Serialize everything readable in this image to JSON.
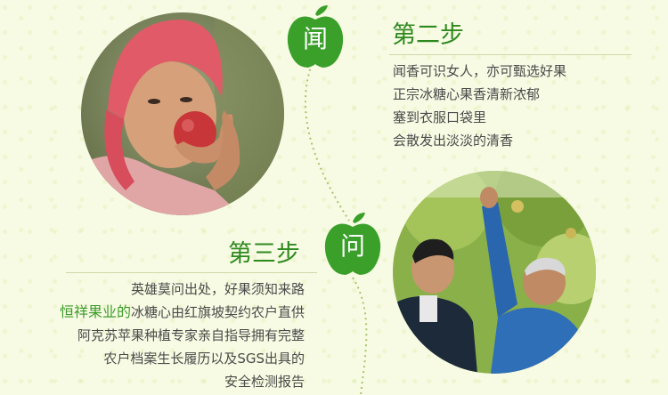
{
  "step2": {
    "badge_char": "闻",
    "title": "第二步",
    "lines": [
      "闻香可识女人，亦可甄选好果",
      "正宗冰糖心果香清新浓郁",
      "塞到衣服口袋里",
      "会散发出淡淡的清香"
    ]
  },
  "step3": {
    "badge_char": "问",
    "title": "第三步",
    "line1": "英雄莫问出处，好果须知来路",
    "brand": "恒祥果业的",
    "line2_rest": "冰糖心由红旗坡契约农户直供",
    "line3": "阿克苏苹果种植专家亲自指导拥有完整",
    "line4": "农户档案生长履历以及SGS出具的",
    "line5": "安全检测报告"
  },
  "colors": {
    "accent_green": "#2e8a1e",
    "apple_green": "#3aa02a",
    "background": "#f8fbe4"
  }
}
